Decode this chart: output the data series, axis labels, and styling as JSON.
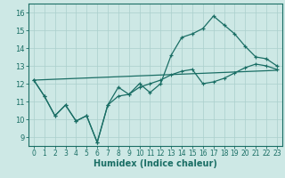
{
  "xlabel": "Humidex (Indice chaleur)",
  "background_color": "#cde8e5",
  "grid_color": "#aacfcc",
  "line_color": "#1a6e65",
  "xlim": [
    -0.5,
    23.5
  ],
  "ylim": [
    8.5,
    16.5
  ],
  "xticks": [
    0,
    1,
    2,
    3,
    4,
    5,
    6,
    7,
    8,
    9,
    10,
    11,
    12,
    13,
    14,
    15,
    16,
    17,
    18,
    19,
    20,
    21,
    22,
    23
  ],
  "yticks": [
    9,
    10,
    11,
    12,
    13,
    14,
    15,
    16
  ],
  "line1_x": [
    0,
    1,
    2,
    3,
    4,
    5,
    6,
    7,
    8,
    9,
    10,
    11,
    12,
    13,
    14,
    15,
    16,
    17,
    18,
    19,
    20,
    21,
    22,
    23
  ],
  "line1_y": [
    12.2,
    11.3,
    10.2,
    10.8,
    9.9,
    10.2,
    8.7,
    10.8,
    11.8,
    11.4,
    12.0,
    11.5,
    12.0,
    13.6,
    14.6,
    14.8,
    15.1,
    15.8,
    15.3,
    14.8,
    14.1,
    13.5,
    13.4,
    13.0
  ],
  "line2_x": [
    0,
    1,
    2,
    3,
    4,
    5,
    6,
    7,
    8,
    9,
    10,
    11,
    12,
    13,
    14,
    15,
    16,
    17,
    18,
    19,
    20,
    21,
    22,
    23
  ],
  "line2_y": [
    12.2,
    11.3,
    10.2,
    10.8,
    9.9,
    10.2,
    8.7,
    10.8,
    11.3,
    11.4,
    11.8,
    12.0,
    12.2,
    12.5,
    12.7,
    12.8,
    12.0,
    12.1,
    12.3,
    12.6,
    12.9,
    13.1,
    13.0,
    12.8
  ],
  "line3_x": [
    0,
    23
  ],
  "line3_y": [
    12.2,
    12.75
  ]
}
